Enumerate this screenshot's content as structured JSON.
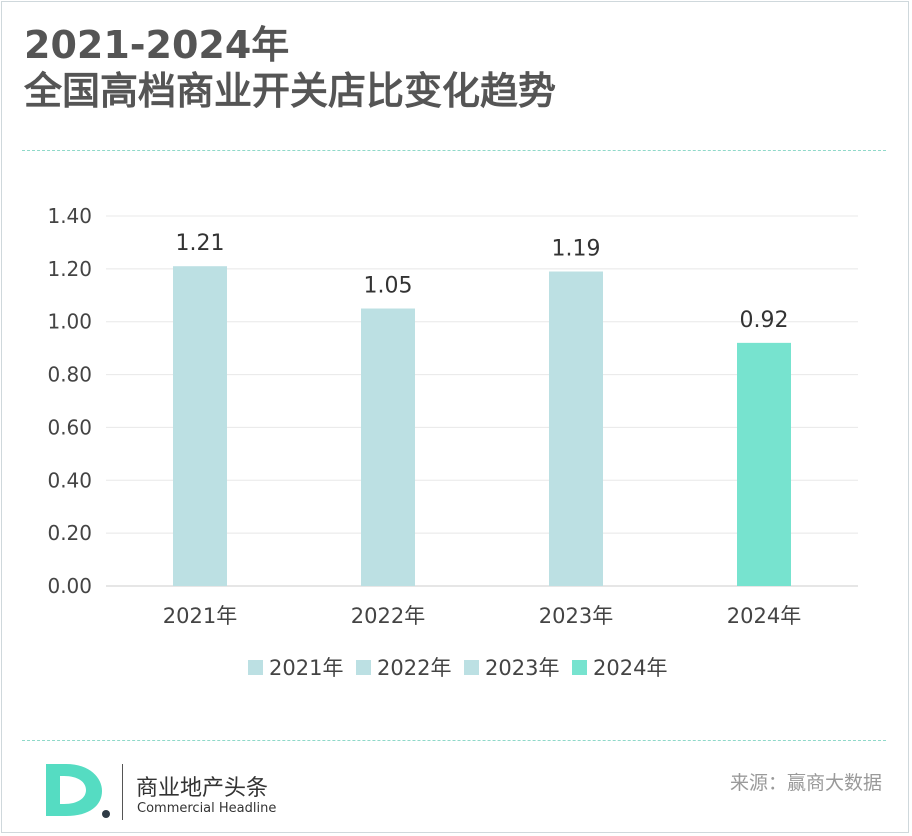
{
  "title": {
    "line1": "2021-2024年",
    "line2": "全国高档商业开关店比变化趋势"
  },
  "chart_data": {
    "type": "bar",
    "categories": [
      "2021年",
      "2022年",
      "2023年",
      "2024年"
    ],
    "values": [
      1.21,
      1.05,
      1.19,
      0.92
    ],
    "value_labels": [
      "1.21",
      "1.05",
      "1.19",
      "0.92"
    ],
    "ylim": [
      0,
      1.4
    ],
    "yticks": [
      "0.00",
      "0.20",
      "0.40",
      "0.60",
      "0.80",
      "1.00",
      "1.20",
      "1.40"
    ],
    "grid": true,
    "legend_position": "bottom",
    "legend": [
      "2021年",
      "2022年",
      "2023年",
      "2024年"
    ],
    "colors": [
      "#bce0e3",
      "#bce0e3",
      "#bce0e3",
      "#77e3cf"
    ],
    "xlabel": "",
    "ylabel": ""
  },
  "footer": {
    "brand_cn": "商业地产头条",
    "brand_en": "Commercial Headline",
    "source": "来源：赢商大数据",
    "logo_colors": {
      "primary": "#55dcc2",
      "dot": "#2f3b45"
    }
  }
}
